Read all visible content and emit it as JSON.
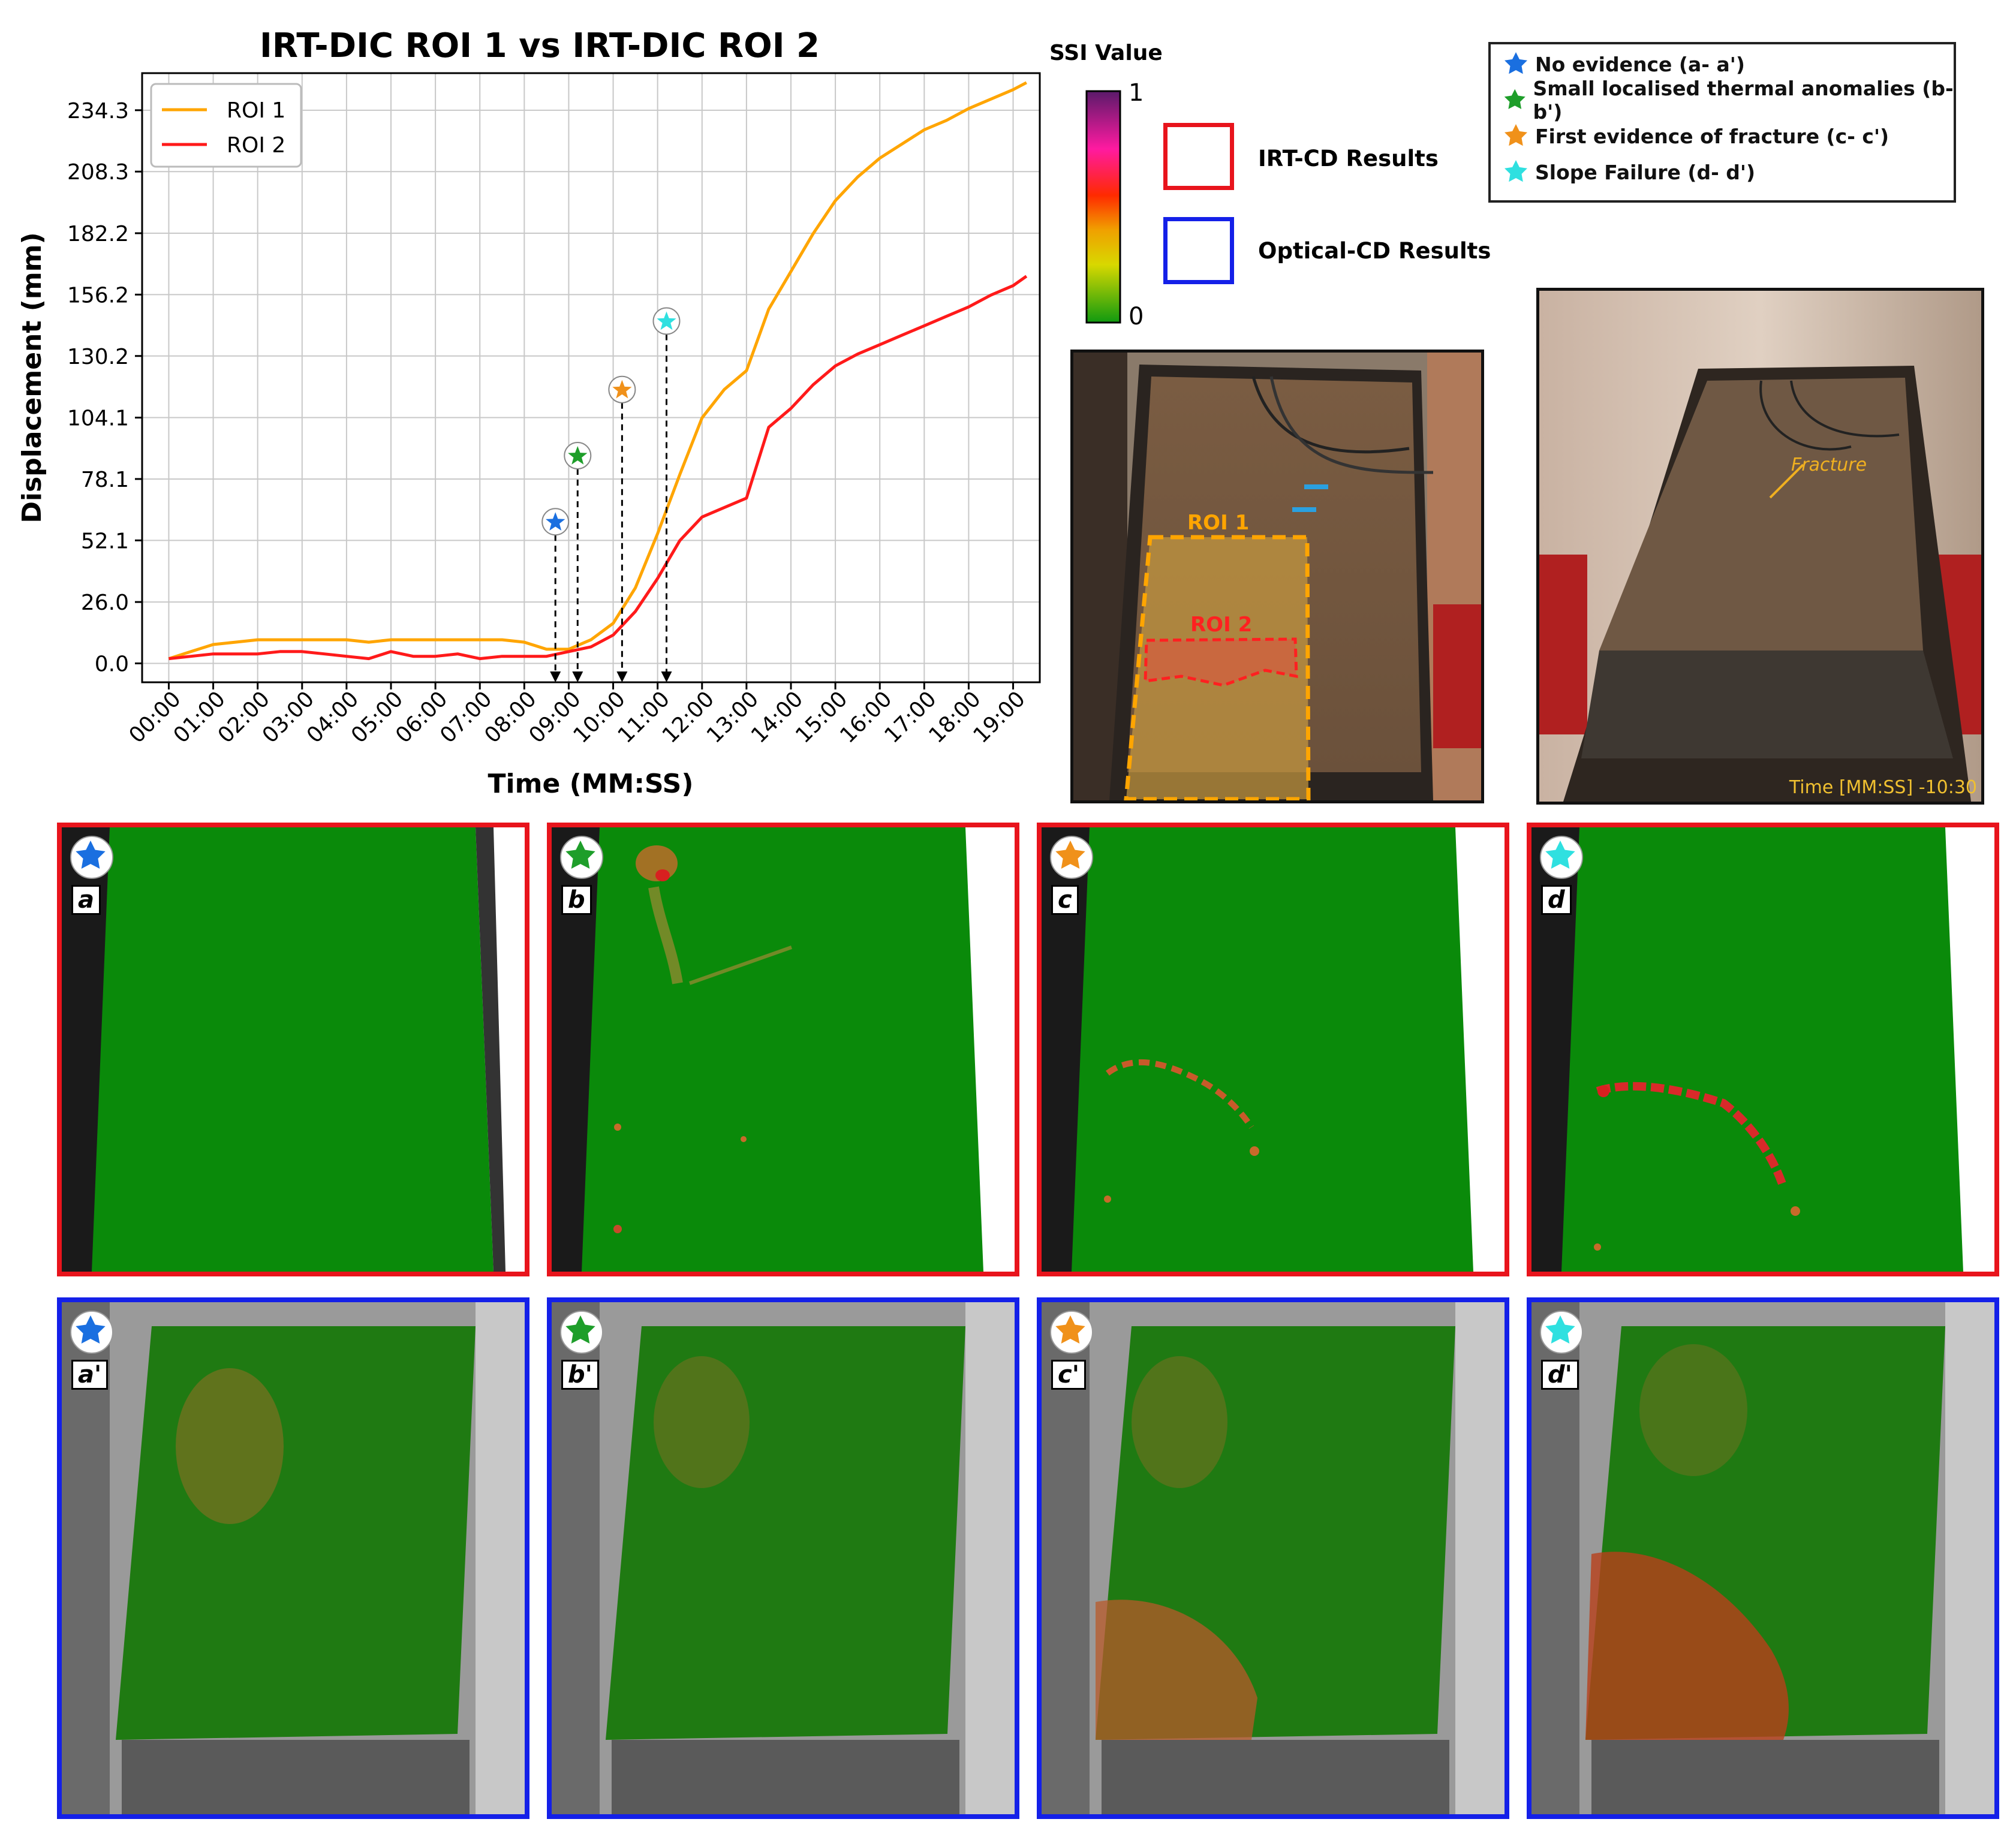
{
  "chart_data": {
    "type": "line",
    "title": "IRT-DIC ROI 1 vs IRT-DIC ROI 2",
    "xlabel": "Time (MM:SS)",
    "ylabel": "Displacement (mm)",
    "x_ticks": [
      "00:00",
      "01:00",
      "02:00",
      "03:00",
      "04:00",
      "05:00",
      "06:00",
      "07:00",
      "08:00",
      "09:00",
      "10:00",
      "11:00",
      "12:00",
      "13:00",
      "14:00",
      "15:00",
      "16:00",
      "17:00",
      "18:00",
      "19:00"
    ],
    "y_ticks": [
      "0.0",
      "26.0",
      "52.1",
      "78.1",
      "104.1",
      "130.2",
      "156.2",
      "182.2",
      "208.3",
      "234.3"
    ],
    "ylim": [
      -8,
      250
    ],
    "xlim": [
      -0.6,
      19.6
    ],
    "series": [
      {
        "name": "ROI 1",
        "color": "#ffa500",
        "x": [
          0,
          0.5,
          1,
          1.5,
          2,
          2.5,
          3,
          3.5,
          4,
          4.5,
          5,
          5.5,
          6,
          6.5,
          7,
          7.5,
          8,
          8.5,
          9,
          9.5,
          10,
          10.5,
          11,
          11.5,
          12,
          12.5,
          13,
          13.5,
          14,
          14.5,
          15,
          15.5,
          16,
          16.5,
          17,
          17.5,
          18,
          18.5,
          19,
          19.3
        ],
        "y": [
          2,
          5,
          8,
          9,
          10,
          10,
          10,
          10,
          10,
          9,
          10,
          10,
          10,
          10,
          10,
          10,
          9,
          6,
          6,
          10,
          17,
          32,
          55,
          80,
          104,
          116,
          124,
          150,
          166,
          182,
          196,
          206,
          214,
          220,
          226,
          230,
          235,
          239,
          243,
          246
        ]
      },
      {
        "name": "ROI 2",
        "color": "#ff1a1a",
        "x": [
          0,
          0.5,
          1,
          1.5,
          2,
          2.5,
          3,
          3.5,
          4,
          4.5,
          5,
          5.5,
          6,
          6.5,
          7,
          7.5,
          8,
          8.5,
          9,
          9.5,
          10,
          10.5,
          11,
          11.5,
          12,
          12.5,
          13,
          13.5,
          14,
          14.5,
          15,
          15.5,
          16,
          16.5,
          17,
          17.5,
          18,
          18.5,
          19,
          19.3
        ],
        "y": [
          2,
          3,
          4,
          4,
          4,
          5,
          5,
          4,
          3,
          2,
          5,
          3,
          3,
          4,
          2,
          3,
          3,
          3,
          5,
          7,
          12,
          22,
          36,
          52,
          62,
          66,
          70,
          100,
          108,
          118,
          126,
          131,
          135,
          139,
          143,
          147,
          151,
          156,
          160,
          164
        ]
      }
    ],
    "markers": [
      {
        "x": 8.7,
        "y": 60,
        "color": "#1a6fe0",
        "label": "No evidence"
      },
      {
        "x": 9.2,
        "y": 88,
        "color": "#1e9e2a",
        "label": "Small localised thermal anomalies"
      },
      {
        "x": 10.2,
        "y": 116,
        "color": "#f0911a",
        "label": "First evidence of fracture"
      },
      {
        "x": 11.2,
        "y": 145,
        "color": "#2fe0e0",
        "label": "Slope Failure"
      }
    ],
    "legend": "top-left"
  },
  "colorbar": {
    "title": "SSI Value",
    "max_label": "1",
    "min_label": "0"
  },
  "result_keys": {
    "irt": "IRT-CD Results",
    "optical": "Optical-CD Results",
    "irt_color": "#e8141c",
    "optical_color": "#1420e8"
  },
  "stage_legend": [
    {
      "text": "No evidence (a- a')",
      "color": "#1a6fe0"
    },
    {
      "text": "Small localised thermal anomalies (b- b')",
      "color": "#1e9e2a"
    },
    {
      "text": "First evidence of fracture (c- c')",
      "color": "#f0911a"
    },
    {
      "text": "Slope Failure (d- d')",
      "color": "#2fe0e0"
    }
  ],
  "photo1": {
    "roi1": "ROI 1",
    "roi2": "ROI 2"
  },
  "photo2": {
    "fracture": "Fracture",
    "time": "Time [MM:SS] -10:30"
  },
  "panels_irt": [
    {
      "label": "a",
      "color": "#1a6fe0"
    },
    {
      "label": "b",
      "color": "#1e9e2a"
    },
    {
      "label": "c",
      "color": "#f0911a"
    },
    {
      "label": "d",
      "color": "#2fe0e0"
    }
  ],
  "panels_optical": [
    {
      "label": "a'",
      "color": "#1a6fe0"
    },
    {
      "label": "b'",
      "color": "#1e9e2a"
    },
    {
      "label": "c'",
      "color": "#f0911a"
    },
    {
      "label": "d'",
      "color": "#2fe0e0"
    }
  ]
}
